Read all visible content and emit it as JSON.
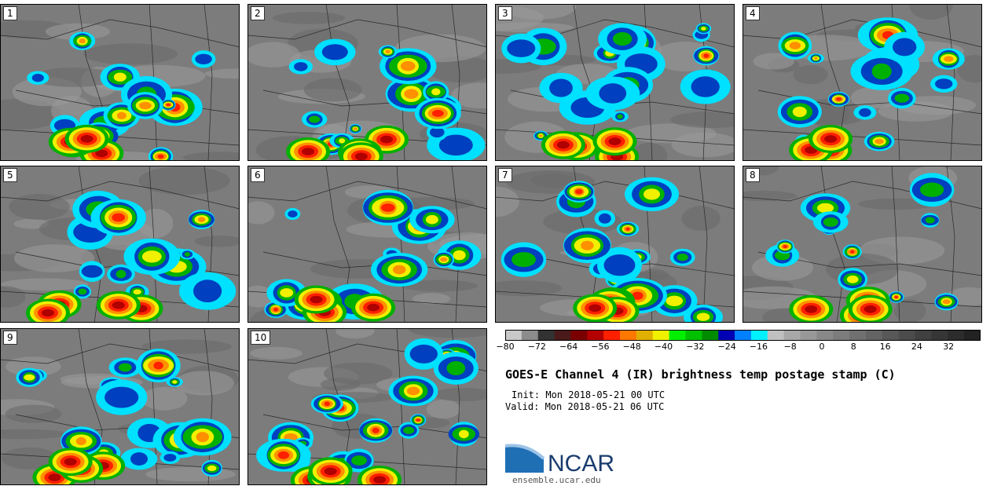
{
  "panels": [
    {
      "label": "1"
    },
    {
      "label": "2"
    },
    {
      "label": "3"
    },
    {
      "label": "4"
    },
    {
      "label": "5"
    },
    {
      "label": "6"
    },
    {
      "label": "7"
    },
    {
      "label": "8"
    },
    {
      "label": "9"
    },
    {
      "label": "10"
    }
  ],
  "colorbar": {
    "ticks": [
      "−80",
      "−72",
      "−64",
      "−56",
      "−48",
      "−40",
      "−32",
      "−24",
      "−16",
      "−8",
      "0",
      "8",
      "16",
      "24",
      "32"
    ],
    "colors": [
      "#c8c8c8",
      "#8c8c8c",
      "#323232",
      "#4a1a1a",
      "#7a0000",
      "#b40000",
      "#ff2000",
      "#ff7800",
      "#e0b000",
      "#f0f000",
      "#00f000",
      "#00c000",
      "#008c00",
      "#0000b4",
      "#0080ff",
      "#00f0ff",
      "#c0c0c0",
      "#a8a8a8",
      "#989898",
      "#888888",
      "#7c7c7c",
      "#707070",
      "#646464",
      "#585858",
      "#4c4c4c",
      "#404040",
      "#363636",
      "#2c2c2c",
      "#222222"
    ]
  },
  "title": "GOES-E Channel 4 (IR) brightness temp postage stamp (C)",
  "init": "Init: Mon 2018-05-21 00 UTC",
  "valid": "Valid: Mon 2018-05-21 06 UTC",
  "logo": {
    "text": "NCAR",
    "url": "ensemble.ucar.edu"
  }
}
